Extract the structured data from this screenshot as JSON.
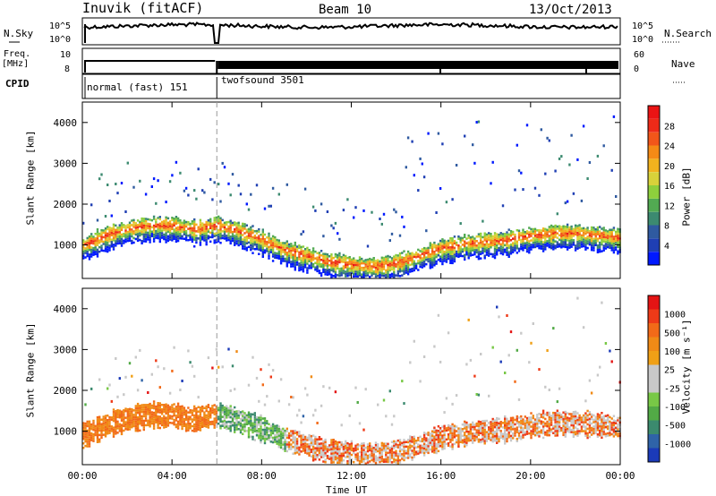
{
  "header": {
    "station": "Inuvik (fitACF)",
    "beam": "Beam 10",
    "date": "13/Oct/2013"
  },
  "status_panels": {
    "nsky_label": "N.Sky",
    "nsearch_label": "N.Search",
    "freq_label_top": "Freq.",
    "freq_label_unit": "[MHz]",
    "nave_label": "Nave",
    "cpid_label": "CPID",
    "noise_ticks": [
      "10^5",
      "10^0"
    ],
    "freq_ticks": [
      "10",
      "8"
    ],
    "nave_ticks": [
      "60",
      "0"
    ],
    "cpid_segments": [
      {
        "label": "normal (fast) 151",
        "start_hour": 0,
        "end_hour": 6
      },
      {
        "label": "twofsound 3501",
        "start_hour": 6,
        "end_hour": 24
      }
    ]
  },
  "axes": {
    "x_label": "Time UT",
    "x_ticks": [
      "00:00",
      "04:00",
      "08:00",
      "12:00",
      "16:00",
      "20:00",
      "00:00"
    ],
    "y_label": "Slant Range [km]",
    "y_ticks": [
      "1000",
      "2000",
      "3000",
      "4000"
    ]
  },
  "colorbars": {
    "power": {
      "label": "Power [dB]",
      "ticks": [
        "4",
        "8",
        "12",
        "16",
        "20",
        "24",
        "28"
      ],
      "colors": [
        "#0019ff",
        "#1f3fb4",
        "#2f5aa0",
        "#3c8a70",
        "#52aa52",
        "#8ecf3c",
        "#d8d23a",
        "#f2b21e",
        "#f58a16",
        "#f2561a",
        "#ee2a18",
        "#ea1414"
      ]
    },
    "velocity": {
      "label": "Velocity [m s⁻¹]",
      "ticks": [
        "1000",
        "500",
        "100",
        "25",
        "-25",
        "-100",
        "-500",
        "-1000"
      ],
      "colors": [
        "#1b3ab8",
        "#2f63a8",
        "#3b8a6e",
        "#52aa46",
        "#78c846",
        "#c8c8c8",
        "#c8c8c8",
        "#f0a016",
        "#f08a16",
        "#f26a18",
        "#ee3a18",
        "#e41414"
      ]
    }
  },
  "chart_data": {
    "type": "heatmap",
    "title": "Inuvik (fitACF)  Beam 10  13/Oct/2013",
    "xlabel": "Time UT",
    "ylabel": "Slant Range [km]",
    "xlim_hours": [
      0,
      24
    ],
    "ylim_km": [
      180,
      4500
    ],
    "panels": [
      {
        "name": "Power",
        "unit": "dB",
        "range": [
          0,
          30
        ]
      },
      {
        "name": "Velocity",
        "unit": "m s-1",
        "range": [
          -1000,
          1000
        ]
      }
    ],
    "cpid_change_hour": 6,
    "main_band_km": [
      [
        0,
        950
      ],
      [
        1,
        1200
      ],
      [
        2,
        1350
      ],
      [
        3,
        1450
      ],
      [
        4,
        1450
      ],
      [
        5,
        1350
      ],
      [
        6,
        1450
      ],
      [
        7,
        1300
      ],
      [
        8,
        1100
      ],
      [
        9,
        850
      ],
      [
        10,
        700
      ],
      [
        11,
        560
      ],
      [
        12,
        480
      ],
      [
        13,
        440
      ],
      [
        14,
        520
      ],
      [
        15,
        700
      ],
      [
        16,
        900
      ],
      [
        17,
        1000
      ],
      [
        18,
        1050
      ],
      [
        19,
        1100
      ],
      [
        20,
        1200
      ],
      [
        21,
        1250
      ],
      [
        22,
        1250
      ],
      [
        23,
        1200
      ],
      [
        24,
        1150
      ]
    ]
  }
}
